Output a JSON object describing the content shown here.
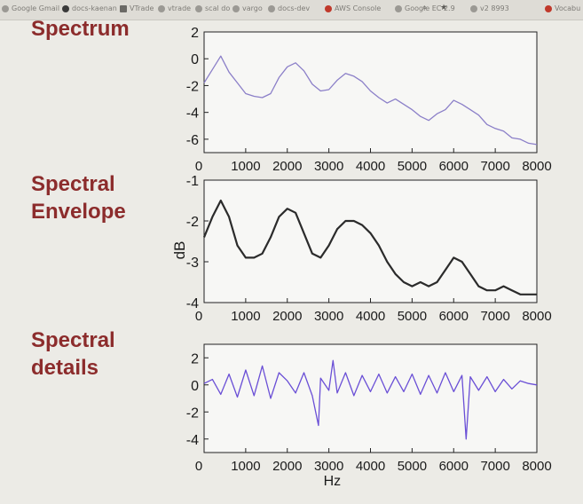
{
  "browser": {
    "bookmarks": [
      {
        "label": "Google Gmail",
        "icon": "google-icon"
      },
      {
        "label": "docs-kaenan",
        "icon": "github-icon"
      },
      {
        "label": "VTrade",
        "icon": "folder-icon"
      },
      {
        "label": "vtrade",
        "icon": "globe-icon"
      },
      {
        "label": "scal do",
        "icon": "globe-icon"
      },
      {
        "label": "vargo",
        "icon": "globe-icon"
      },
      {
        "label": "docs-dev",
        "icon": "globe-icon"
      },
      {
        "label": "AWS Console",
        "icon": "aws-icon"
      },
      {
        "label": "Google EC 2.9",
        "icon": "google-icon"
      },
      {
        "label": "v2 8993",
        "icon": "globe-icon"
      }
    ],
    "corner_label": "Vocabu"
  },
  "labels": {
    "spectrum": "Spectrum",
    "envelope": [
      "Spectral",
      "Envelope"
    ],
    "details": [
      "Spectral",
      "details"
    ]
  },
  "colors": {
    "label": "#8c2c2c",
    "spectrum_line": "#8b7fc8",
    "envelope_line": "#2b2b2b",
    "details_line": "#6a4fd6"
  },
  "chart_data": [
    {
      "type": "line",
      "title": "Spectrum",
      "xlabel": "",
      "ylabel": "",
      "xlim": [
        0,
        8000
      ],
      "ylim": [
        -7,
        2
      ],
      "xticks": [
        0,
        1000,
        2000,
        3000,
        4000,
        5000,
        6000,
        7000,
        8000
      ],
      "yticks": [
        2,
        0,
        -2,
        -4,
        -6
      ],
      "grid": false,
      "series": [
        {
          "x": [
            0,
            200,
            400,
            600,
            800,
            1000,
            1200,
            1400,
            1600,
            1800,
            2000,
            2200,
            2400,
            2600,
            2800,
            3000,
            3200,
            3400,
            3600,
            3800,
            4000,
            4200,
            4400,
            4600,
            4800,
            5000,
            5200,
            5400,
            5600,
            5800,
            6000,
            6200,
            6400,
            6600,
            6800,
            7000,
            7200,
            7400,
            7600,
            7800,
            8000
          ],
          "y": [
            -1.8,
            -0.8,
            0.2,
            -1.0,
            -1.8,
            -2.6,
            -2.8,
            -2.9,
            -2.6,
            -1.4,
            -0.6,
            -0.3,
            -0.9,
            -1.9,
            -2.4,
            -2.3,
            -1.6,
            -1.1,
            -1.3,
            -1.7,
            -2.4,
            -2.9,
            -3.3,
            -3.0,
            -3.4,
            -3.8,
            -4.3,
            -4.6,
            -4.1,
            -3.8,
            -3.1,
            -3.4,
            -3.8,
            -4.2,
            -4.9,
            -5.2,
            -5.4,
            -5.9,
            -6.0,
            -6.3,
            -6.4
          ]
        }
      ]
    },
    {
      "type": "line",
      "title": "Spectral Envelope",
      "xlabel": "",
      "ylabel": "dB",
      "xlim": [
        0,
        8000
      ],
      "ylim": [
        -4,
        -1
      ],
      "xticks": [
        0,
        1000,
        2000,
        3000,
        4000,
        5000,
        6000,
        7000,
        8000
      ],
      "yticks": [
        -1,
        -2,
        -3,
        -4
      ],
      "grid": false,
      "series": [
        {
          "x": [
            0,
            200,
            400,
            600,
            800,
            1000,
            1200,
            1400,
            1600,
            1800,
            2000,
            2200,
            2400,
            2600,
            2800,
            3000,
            3200,
            3400,
            3600,
            3800,
            4000,
            4200,
            4400,
            4600,
            4800,
            5000,
            5200,
            5400,
            5600,
            5800,
            6000,
            6200,
            6400,
            6600,
            6800,
            7000,
            7200,
            7400,
            7600,
            7800,
            8000
          ],
          "y": [
            -2.4,
            -1.9,
            -1.5,
            -1.9,
            -2.6,
            -2.9,
            -2.9,
            -2.8,
            -2.4,
            -1.9,
            -1.7,
            -1.8,
            -2.3,
            -2.8,
            -2.9,
            -2.6,
            -2.2,
            -2.0,
            -2.0,
            -2.1,
            -2.3,
            -2.6,
            -3.0,
            -3.3,
            -3.5,
            -3.6,
            -3.5,
            -3.6,
            -3.5,
            -3.2,
            -2.9,
            -3.0,
            -3.3,
            -3.6,
            -3.7,
            -3.7,
            -3.6,
            -3.7,
            -3.8,
            -3.8,
            -3.8
          ]
        }
      ]
    },
    {
      "type": "line",
      "title": "Spectral details",
      "xlabel": "Hz",
      "ylabel": "",
      "xlim": [
        0,
        8000
      ],
      "ylim": [
        -5,
        3
      ],
      "xticks": [
        0,
        1000,
        2000,
        3000,
        4000,
        5000,
        6000,
        7000,
        8000
      ],
      "yticks": [
        2,
        0,
        -2,
        -4
      ],
      "grid": false,
      "series": [
        {
          "x": [
            0,
            200,
            400,
            600,
            800,
            1000,
            1200,
            1400,
            1600,
            1800,
            2000,
            2200,
            2400,
            2600,
            2750,
            2800,
            3000,
            3100,
            3200,
            3400,
            3600,
            3800,
            4000,
            4200,
            4400,
            4600,
            4800,
            5000,
            5200,
            5400,
            5600,
            5800,
            6000,
            6200,
            6300,
            6400,
            6600,
            6800,
            7000,
            7200,
            7400,
            7600,
            7800,
            8000
          ],
          "y": [
            0.1,
            0.4,
            -0.7,
            0.8,
            -0.9,
            1.1,
            -0.8,
            1.4,
            -1.0,
            0.9,
            0.3,
            -0.6,
            0.9,
            -0.8,
            -3.0,
            0.5,
            -0.4,
            1.8,
            -0.6,
            0.9,
            -0.8,
            0.7,
            -0.5,
            0.8,
            -0.6,
            0.6,
            -0.5,
            0.8,
            -0.7,
            0.7,
            -0.6,
            0.9,
            -0.5,
            0.7,
            -4.0,
            0.6,
            -0.4,
            0.6,
            -0.5,
            0.4,
            -0.3,
            0.3,
            0.1,
            0.0
          ]
        }
      ]
    }
  ]
}
